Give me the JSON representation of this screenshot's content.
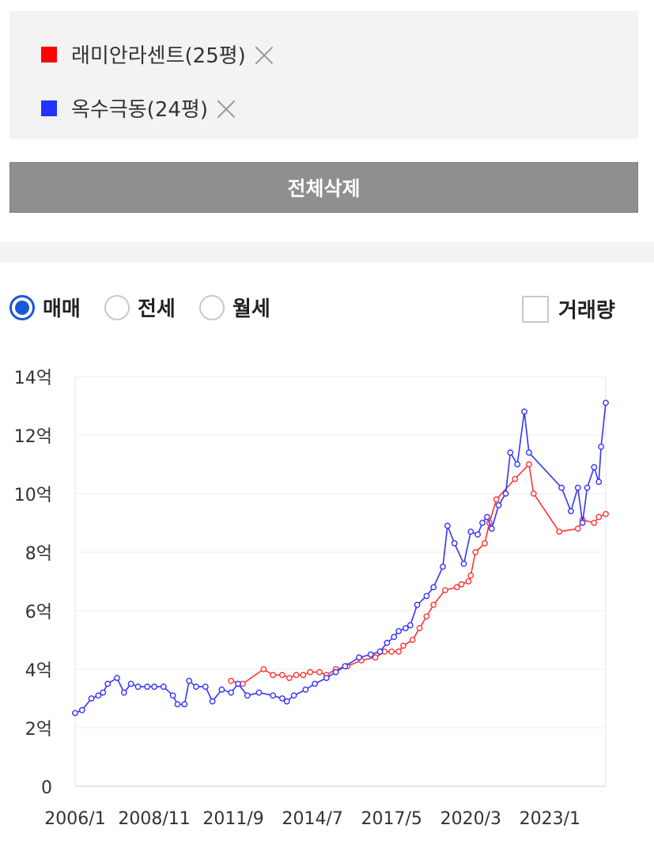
{
  "compare_list": {
    "items": [
      {
        "label": "래미안라센트(25평)",
        "color": "#ff0000"
      },
      {
        "label": "옥수극동(24평)",
        "color": "#2233ff"
      }
    ]
  },
  "delete_all_label": "전체삭제",
  "trade_types": {
    "options": [
      "매매",
      "전세",
      "월세"
    ],
    "selected": "매매"
  },
  "volume_toggle": {
    "label": "거래량",
    "checked": false
  },
  "chart_data": {
    "type": "line",
    "title": "",
    "xlabel": "",
    "ylabel": "",
    "x_tick_labels": [
      "2006/1",
      "2008/11",
      "2011/9",
      "2014/7",
      "2017/5",
      "2020/3",
      "2023/1"
    ],
    "y_tick_labels": [
      "0",
      "2억",
      "4억",
      "6억",
      "8억",
      "10억",
      "12억",
      "14억"
    ],
    "ylim": [
      0,
      14
    ],
    "y_unit": "억",
    "xlim": [
      "2006/1",
      "2025/1"
    ],
    "grid": "horizontal",
    "legend": "top",
    "series": [
      {
        "name": "래미안라센트(25평)",
        "color": "#ff3333",
        "points": [
          [
            "2011/8",
            3.6
          ],
          [
            "2012/1",
            3.5
          ],
          [
            "2012/10",
            4.0
          ],
          [
            "2013/2",
            3.8
          ],
          [
            "2013/6",
            3.8
          ],
          [
            "2013/9",
            3.7
          ],
          [
            "2013/12",
            3.8
          ],
          [
            "2014/3",
            3.8
          ],
          [
            "2014/6",
            3.9
          ],
          [
            "2014/10",
            3.9
          ],
          [
            "2015/1",
            3.8
          ],
          [
            "2015/5",
            4.0
          ],
          [
            "2015/10",
            4.1
          ],
          [
            "2016/4",
            4.3
          ],
          [
            "2016/10",
            4.4
          ],
          [
            "2017/2",
            4.6
          ],
          [
            "2017/5",
            4.6
          ],
          [
            "2017/8",
            4.6
          ],
          [
            "2017/10",
            4.8
          ],
          [
            "2018/2",
            5.0
          ],
          [
            "2018/5",
            5.4
          ],
          [
            "2018/8",
            5.8
          ],
          [
            "2018/11",
            6.2
          ],
          [
            "2019/4",
            6.7
          ],
          [
            "2019/9",
            6.8
          ],
          [
            "2019/11",
            6.9
          ],
          [
            "2020/2",
            7.0
          ],
          [
            "2020/3",
            7.2
          ],
          [
            "2020/5",
            8.0
          ],
          [
            "2020/9",
            8.3
          ],
          [
            "2020/11",
            9.0
          ],
          [
            "2021/2",
            9.8
          ],
          [
            "2021/10",
            10.5
          ],
          [
            "2022/4",
            11.0
          ],
          [
            "2022/6",
            10.0
          ],
          [
            "2023/5",
            8.7
          ],
          [
            "2024/1",
            8.8
          ],
          [
            "2024/3",
            9.1
          ],
          [
            "2024/8",
            9.0
          ],
          [
            "2024/10",
            9.2
          ],
          [
            "2025/1",
            9.3
          ]
        ]
      },
      {
        "name": "옥수극동(24평)",
        "color": "#3333ff",
        "points": [
          [
            "2006/1",
            2.5
          ],
          [
            "2006/4",
            2.6
          ],
          [
            "2006/8",
            3.0
          ],
          [
            "2006/11",
            3.1
          ],
          [
            "2007/1",
            3.2
          ],
          [
            "2007/3",
            3.5
          ],
          [
            "2007/7",
            3.7
          ],
          [
            "2007/10",
            3.2
          ],
          [
            "2008/1",
            3.5
          ],
          [
            "2008/4",
            3.4
          ],
          [
            "2008/8",
            3.4
          ],
          [
            "2008/11",
            3.4
          ],
          [
            "2009/3",
            3.4
          ],
          [
            "2009/7",
            3.1
          ],
          [
            "2009/9",
            2.8
          ],
          [
            "2009/12",
            2.8
          ],
          [
            "2010/2",
            3.6
          ],
          [
            "2010/5",
            3.4
          ],
          [
            "2010/9",
            3.4
          ],
          [
            "2010/12",
            2.9
          ],
          [
            "2011/4",
            3.3
          ],
          [
            "2011/8",
            3.2
          ],
          [
            "2011/11",
            3.5
          ],
          [
            "2012/3",
            3.1
          ],
          [
            "2012/8",
            3.2
          ],
          [
            "2013/2",
            3.1
          ],
          [
            "2013/6",
            3.0
          ],
          [
            "2013/8",
            2.9
          ],
          [
            "2013/11",
            3.1
          ],
          [
            "2014/4",
            3.3
          ],
          [
            "2014/8",
            3.5
          ],
          [
            "2015/1",
            3.7
          ],
          [
            "2015/5",
            3.9
          ],
          [
            "2015/9",
            4.1
          ],
          [
            "2016/3",
            4.4
          ],
          [
            "2016/8",
            4.5
          ],
          [
            "2016/12",
            4.6
          ],
          [
            "2017/3",
            4.9
          ],
          [
            "2017/6",
            5.1
          ],
          [
            "2017/8",
            5.3
          ],
          [
            "2017/11",
            5.4
          ],
          [
            "2018/1",
            5.5
          ],
          [
            "2018/4",
            6.2
          ],
          [
            "2018/8",
            6.5
          ],
          [
            "2018/11",
            6.8
          ],
          [
            "2019/3",
            7.5
          ],
          [
            "2019/5",
            8.9
          ],
          [
            "2019/8",
            8.3
          ],
          [
            "2019/12",
            7.6
          ],
          [
            "2020/3",
            8.7
          ],
          [
            "2020/6",
            8.6
          ],
          [
            "2020/8",
            9.0
          ],
          [
            "2020/10",
            9.2
          ],
          [
            "2020/12",
            8.8
          ],
          [
            "2021/3",
            9.6
          ],
          [
            "2021/6",
            10.0
          ],
          [
            "2021/8",
            11.4
          ],
          [
            "2021/11",
            11.0
          ],
          [
            "2022/2",
            12.8
          ],
          [
            "2022/4",
            11.4
          ],
          [
            "2023/6",
            10.2
          ],
          [
            "2023/10",
            9.4
          ],
          [
            "2024/1",
            10.2
          ],
          [
            "2024/3",
            9.0
          ],
          [
            "2024/5",
            10.2
          ],
          [
            "2024/8",
            10.9
          ],
          [
            "2024/10",
            10.4
          ],
          [
            "2024/11",
            11.6
          ],
          [
            "2025/1",
            13.1
          ]
        ]
      }
    ]
  }
}
